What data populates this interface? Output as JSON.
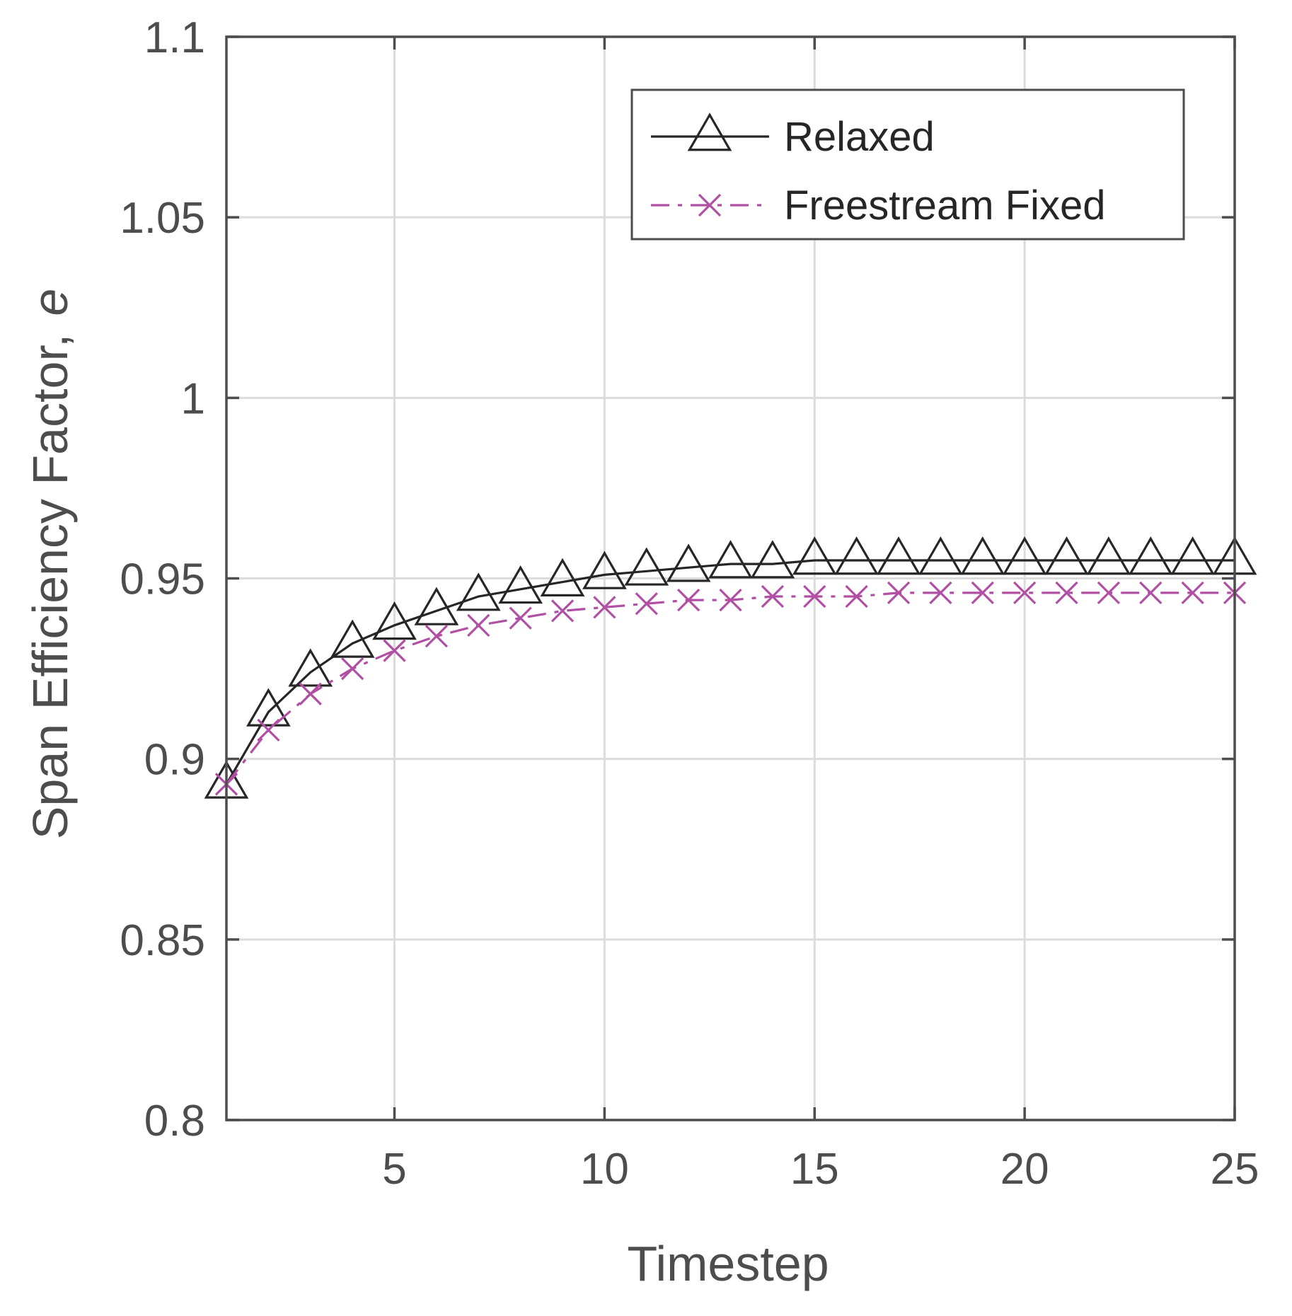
{
  "chart_data": {
    "type": "line",
    "title": "",
    "xlabel": "Timestep",
    "ylabel": "Span Efficiency Factor,",
    "ylabel_symbol": "e",
    "xlim": [
      1,
      25
    ],
    "ylim": [
      0.8,
      1.1
    ],
    "xticks": [
      5,
      10,
      15,
      20,
      25
    ],
    "xtick_labels": [
      "5",
      "10",
      "15",
      "20",
      "25"
    ],
    "yticks": [
      0.8,
      0.85,
      0.9,
      0.95,
      1.0,
      1.05,
      1.1
    ],
    "ytick_labels": [
      "0.8",
      "0.85",
      "0.9",
      "0.95",
      "1",
      "1.05",
      "1.1"
    ],
    "grid": true,
    "legend_position": "top-right",
    "x": [
      1,
      2,
      3,
      4,
      5,
      6,
      7,
      8,
      9,
      10,
      11,
      12,
      13,
      14,
      15,
      16,
      17,
      18,
      19,
      20,
      21,
      22,
      23,
      24,
      25
    ],
    "series": [
      {
        "name": "Relaxed",
        "color": "#262626",
        "line_style": "solid",
        "marker": "triangle",
        "values": [
          0.893,
          0.913,
          0.924,
          0.932,
          0.937,
          0.941,
          0.945,
          0.947,
          0.949,
          0.951,
          0.952,
          0.953,
          0.954,
          0.954,
          0.955,
          0.955,
          0.955,
          0.955,
          0.955,
          0.955,
          0.955,
          0.955,
          0.955,
          0.955,
          0.955
        ]
      },
      {
        "name": "Freestream Fixed",
        "color": "#b04fa4",
        "line_style": "dashdot",
        "marker": "x",
        "values": [
          0.893,
          0.908,
          0.918,
          0.925,
          0.93,
          0.934,
          0.937,
          0.939,
          0.941,
          0.942,
          0.943,
          0.944,
          0.944,
          0.945,
          0.945,
          0.945,
          0.946,
          0.946,
          0.946,
          0.946,
          0.946,
          0.946,
          0.946,
          0.946,
          0.946
        ]
      }
    ]
  }
}
